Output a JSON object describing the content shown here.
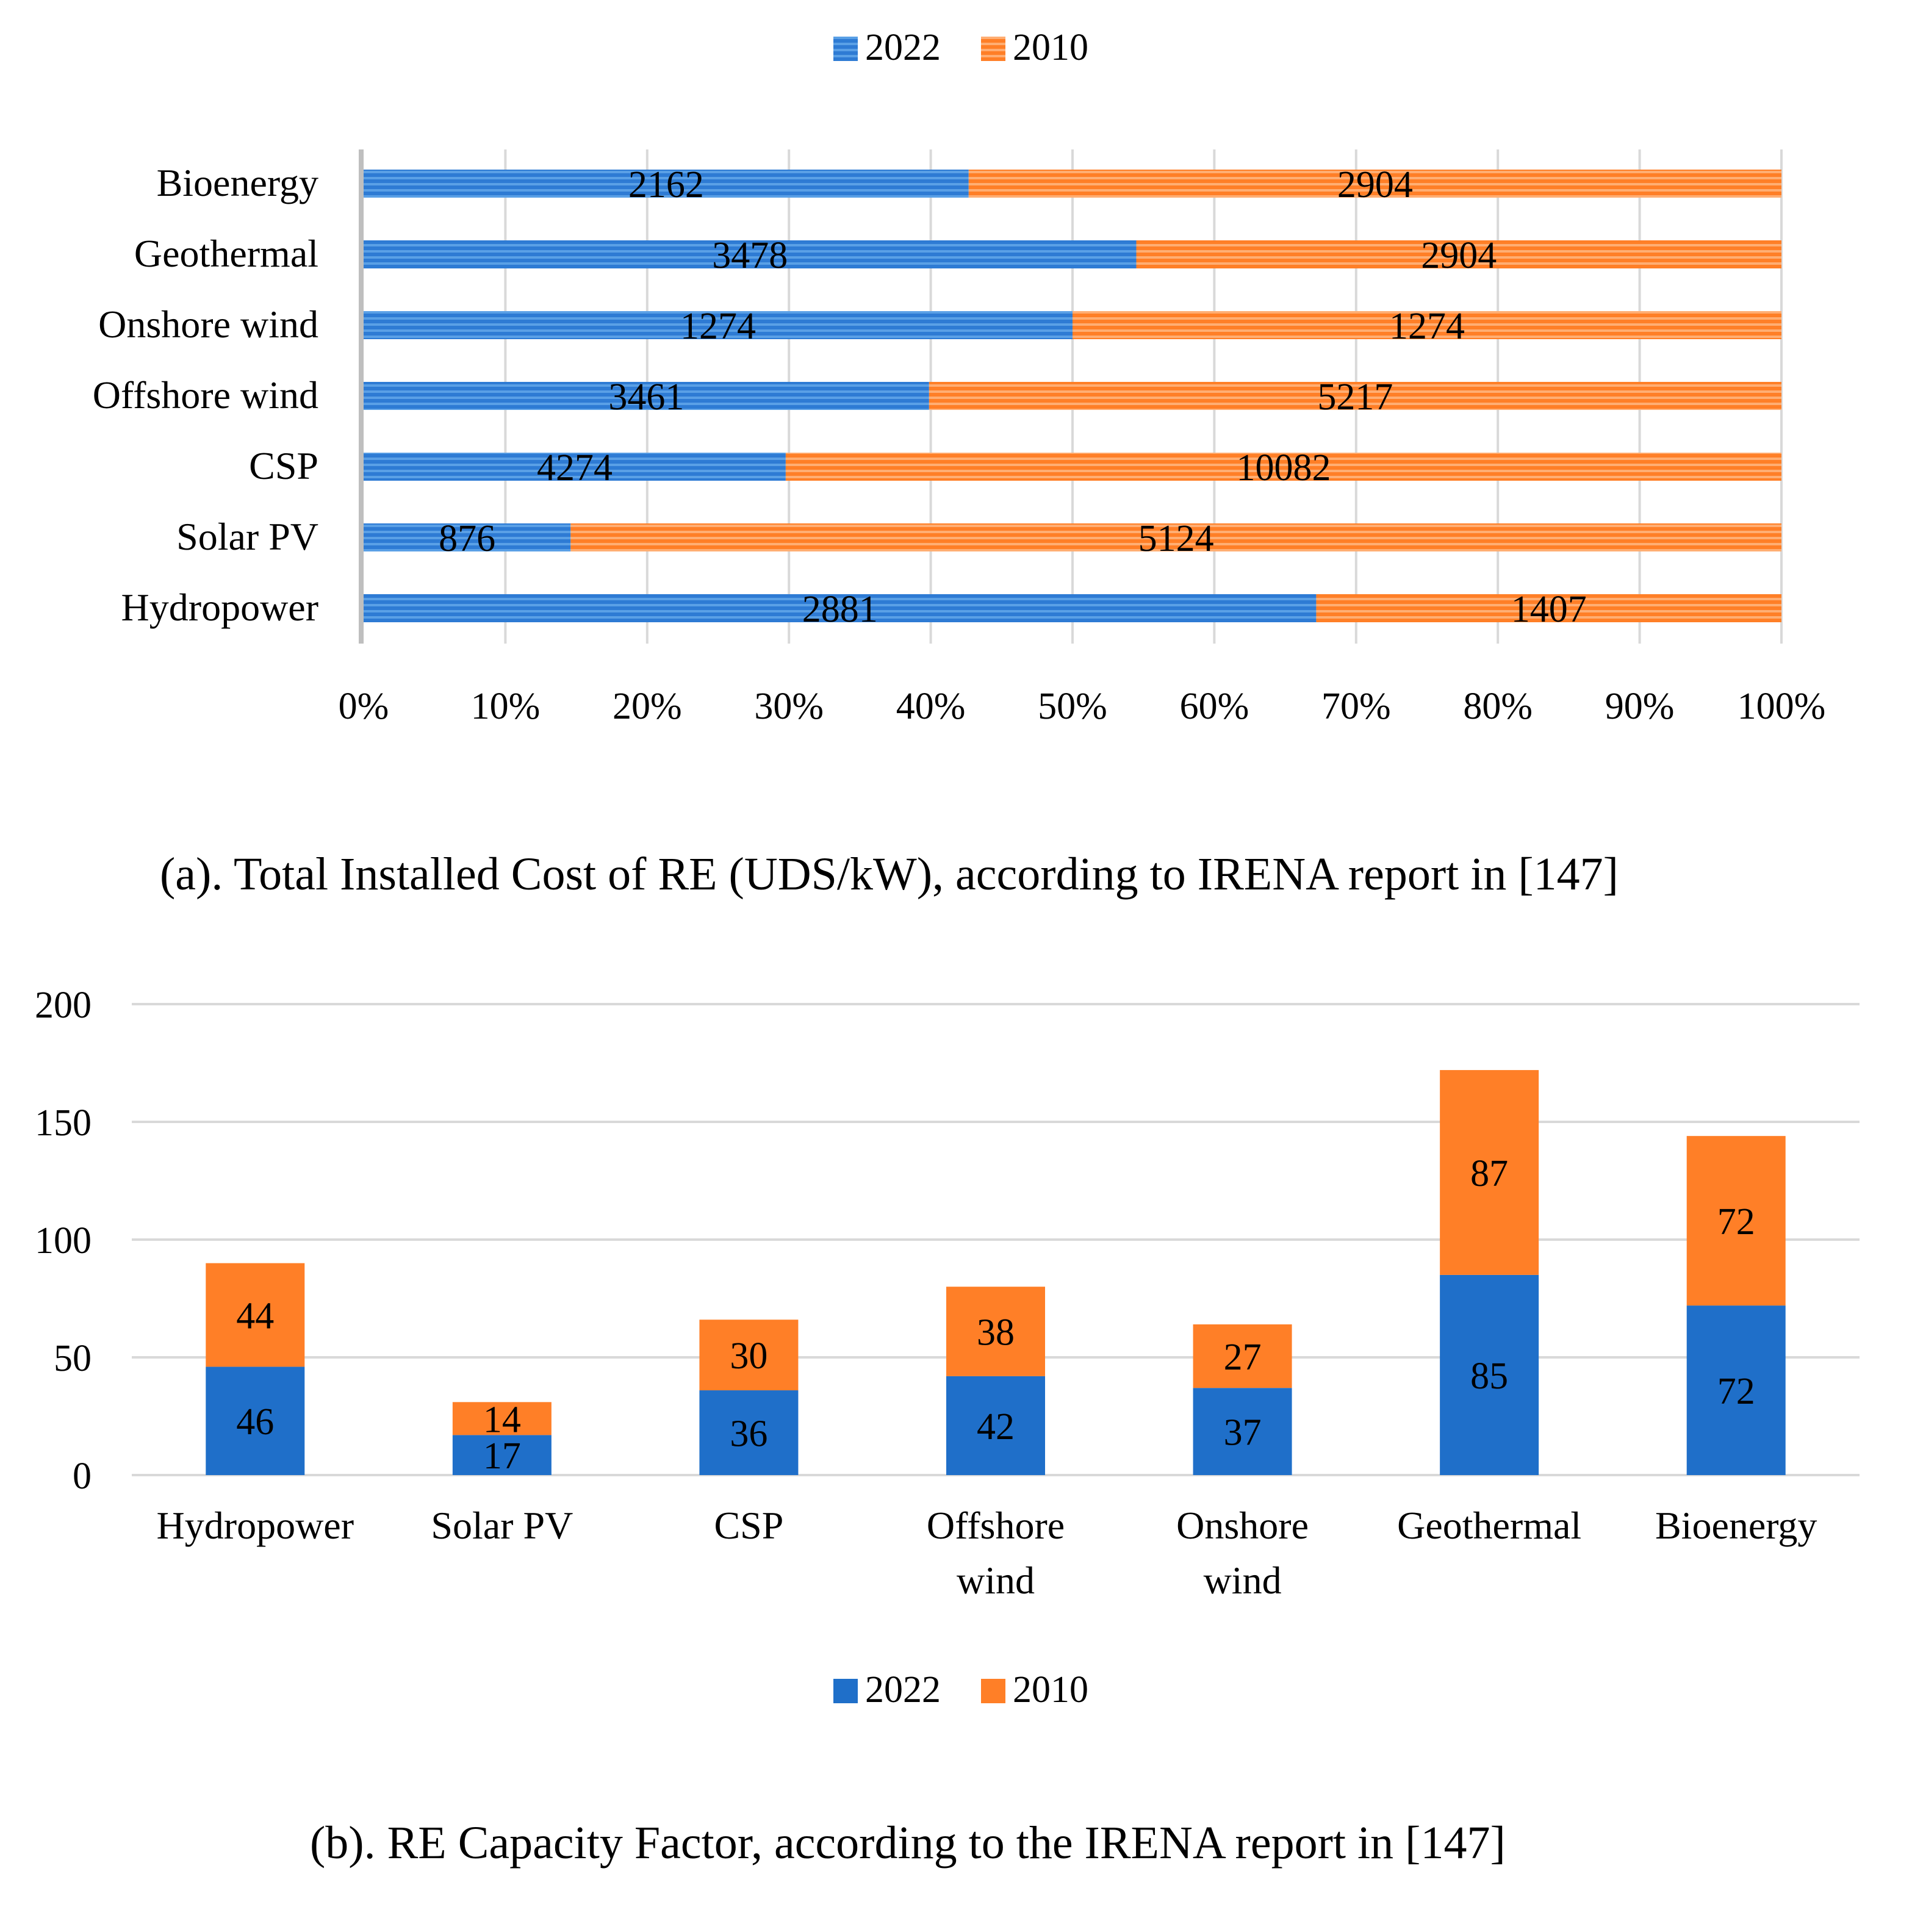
{
  "colors": {
    "s2022": "#1f6fc9",
    "s2010": "#ff7f27",
    "grid": "#d9d9d9",
    "axis": "#bfbfbf",
    "text": "#000000"
  },
  "chart_data": [
    {
      "type": "bar",
      "orientation": "horizontal",
      "stacked": "percent",
      "caption": "(a). Total Installed Cost of RE (UDS/kW), according to IRENA report in [147]",
      "categories": [
        "Hydropower",
        "Solar PV",
        "CSP",
        "Offshore wind",
        "Onshore wind",
        "Geothermal",
        "Bioenergy"
      ],
      "series": [
        {
          "name": "2022",
          "values": [
            2881,
            876,
            4274,
            3461,
            1274,
            3478,
            2162
          ]
        },
        {
          "name": "2010",
          "values": [
            1407,
            5124,
            10082,
            5217,
            1274,
            2904,
            2904
          ]
        }
      ],
      "xticks": [
        "0%",
        "10%",
        "20%",
        "30%",
        "40%",
        "50%",
        "60%",
        "70%",
        "80%",
        "90%",
        "100%"
      ],
      "xlim": [
        0,
        100
      ],
      "legend": "top-center",
      "grid": true
    },
    {
      "type": "bar",
      "orientation": "vertical",
      "stacked": "absolute",
      "caption": "(b). RE Capacity Factor, according to the IRENA report in [147]",
      "categories": [
        [
          "Hydropower"
        ],
        [
          "Solar PV"
        ],
        [
          "CSP"
        ],
        [
          "Offshore",
          "wind"
        ],
        [
          "Onshore",
          "wind"
        ],
        [
          "Geothermal"
        ],
        [
          "Bioenergy"
        ]
      ],
      "series": [
        {
          "name": "2022",
          "values": [
            46,
            17,
            36,
            42,
            37,
            85,
            72
          ]
        },
        {
          "name": "2010",
          "values": [
            44,
            14,
            30,
            38,
            27,
            87,
            72
          ]
        }
      ],
      "yticks": [
        "0",
        "50",
        "100",
        "150",
        "200"
      ],
      "ylim": [
        0,
        200
      ],
      "legend": "bottom-center",
      "grid": true
    }
  ]
}
